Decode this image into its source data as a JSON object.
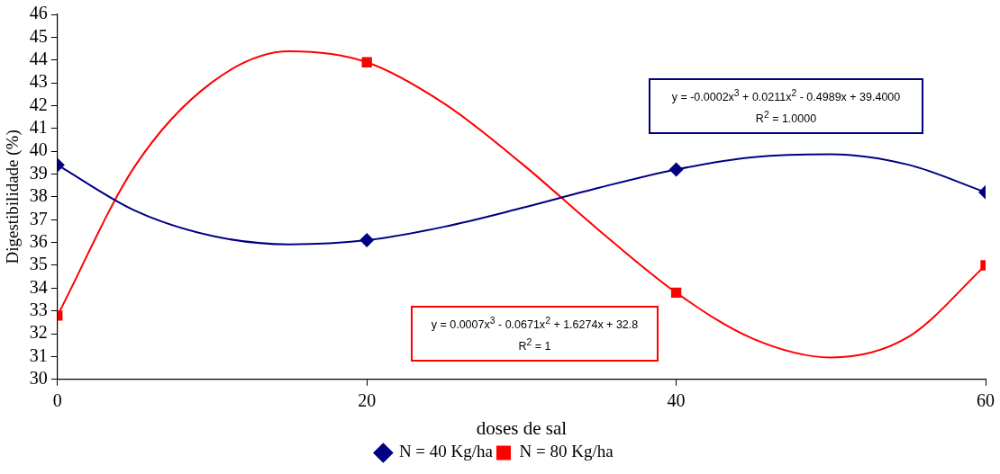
{
  "chart_data": {
    "type": "scatter",
    "xlabel": "doses de sal",
    "ylabel": "Digestibilidade (%)",
    "xlim": [
      0,
      60
    ],
    "xticks": [
      0,
      20,
      40,
      60
    ],
    "ylim": [
      30,
      46
    ],
    "yticks": [
      30,
      31,
      32,
      33,
      34,
      35,
      36,
      37,
      38,
      39,
      40,
      41,
      42,
      43,
      44,
      45,
      46
    ],
    "legend": "bottom",
    "series": [
      {
        "type": "line",
        "color": "#000080",
        "marker": "none",
        "x": [
          0,
          5,
          10,
          15,
          20,
          25,
          30,
          35,
          40,
          45,
          50,
          55,
          60
        ],
        "values": [
          39.4,
          37.4,
          36.29,
          35.92,
          36.1,
          36.69,
          37.51,
          38.4,
          39.2,
          39.74,
          39.87,
          39.41,
          38.2
        ]
      },
      {
        "type": "line",
        "color": "#ff0000",
        "marker": "none",
        "x": [
          0,
          5,
          10,
          15,
          20,
          25,
          30,
          35,
          40,
          45,
          50,
          55,
          60
        ],
        "values": [
          32.8,
          39.34,
          43.03,
          44.38,
          43.9,
          42.09,
          39.47,
          36.54,
          33.8,
          31.77,
          30.96,
          31.86,
          35.0
        ]
      },
      {
        "name": "N = 40 Kg/ha",
        "color": "#000080",
        "marker": "diamond",
        "x": [
          0,
          20,
          40,
          60
        ],
        "values": [
          39.4,
          36.1,
          39.2,
          38.2
        ]
      },
      {
        "name": "N = 80 Kg/ha",
        "color": "#ff0000",
        "marker": "square",
        "x": [
          0,
          20,
          40,
          60
        ],
        "values": [
          32.8,
          43.9,
          33.8,
          35.0
        ]
      }
    ],
    "annotations": [
      "y = -0.0002x$^{3}$ + 0.0211x$^{2}$ - 0.4989x + 39.4000",
      "R$^{2}$ = 1.0000",
      "y = 0.0007x$^{3}$ - 0.0671x$^{2}$ + 1.6274x + 32.8",
      "R$^{2}$ = 1"
    ]
  }
}
